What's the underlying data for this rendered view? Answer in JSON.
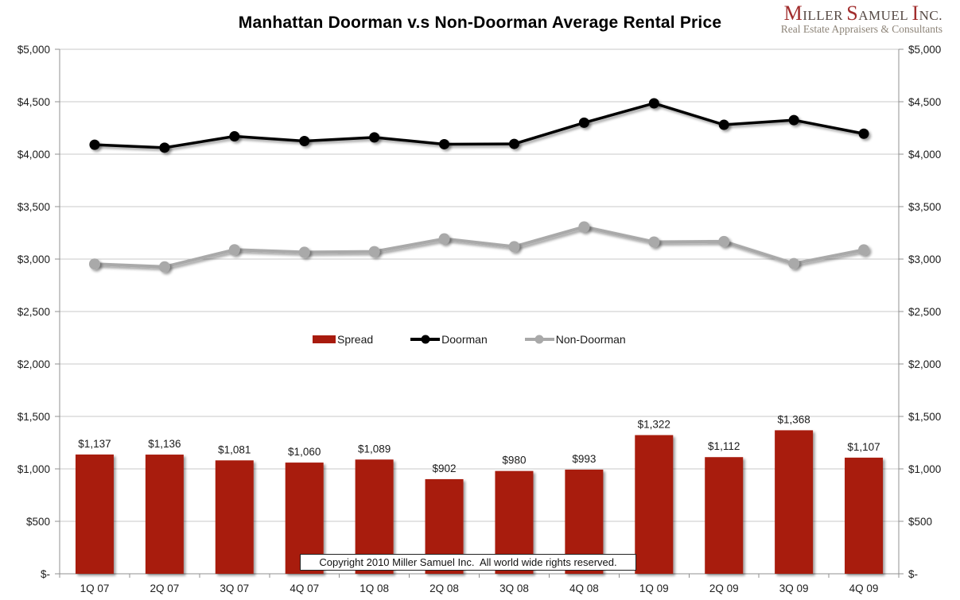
{
  "title": "Manhattan Doorman v.s Non-Doorman Average Rental Price",
  "logo": {
    "name": "Miller Samuel Inc.",
    "subtitle": "Real Estate Appraisers & Consultants"
  },
  "copyright": "Copyright 2010 Miller Samuel Inc.  All world wide rights reserved.",
  "legend": [
    {
      "label": "Spread",
      "type": "bar",
      "color": "#a81b0e"
    },
    {
      "label": "Doorman",
      "type": "line",
      "color": "#000000"
    },
    {
      "label": "Non-Doorman",
      "type": "line",
      "color": "#a9a9a9"
    }
  ],
  "colors": {
    "bar": "#a81b0e",
    "doorman_line": "#000000",
    "non_doorman_line": "#a9a9a9",
    "gridline": "#c9c9c9",
    "axis_line": "#909090",
    "axis_text": "#1c1c1c",
    "logo_red": "#a12d2d",
    "logo_gray": "#8d8478"
  },
  "chart_data": {
    "type": "combo (bar + line)",
    "title": "Manhattan Doorman v.s Non-Doorman Average Rental Price",
    "categories": [
      "1Q 07",
      "2Q 07",
      "3Q 07",
      "4Q 07",
      "1Q 08",
      "2Q 08",
      "3Q 08",
      "4Q 08",
      "1Q 09",
      "2Q 09",
      "3Q 09",
      "4Q 09"
    ],
    "series": [
      {
        "name": "Spread",
        "type": "bar",
        "color": "#a81b0e",
        "values": [
          1137,
          1136,
          1081,
          1060,
          1089,
          902,
          980,
          993,
          1322,
          1112,
          1368,
          1107
        ],
        "data_labels": [
          "$1,137",
          "$1,136",
          "$1,081",
          "$1,060",
          "$1,089",
          "$902",
          "$980",
          "$993",
          "$1,322",
          "$1,112",
          "$1,368",
          "$1,107"
        ]
      },
      {
        "name": "Doorman",
        "type": "line",
        "color": "#000000",
        "values": [
          4090,
          4062,
          4170,
          4125,
          4160,
          4095,
          4098,
          4300,
          4485,
          4280,
          4325,
          4195
        ]
      },
      {
        "name": "Non-Doorman",
        "type": "line",
        "color": "#a9a9a9",
        "values": [
          2953,
          2926,
          3089,
          3065,
          3071,
          3193,
          3118,
          3307,
          3163,
          3168,
          2957,
          3088
        ]
      }
    ],
    "y_axis": {
      "min": 0,
      "max": 5000,
      "step": 500,
      "tick_labels": [
        "$-",
        "$500",
        "$1,000",
        "$1,500",
        "$2,000",
        "$2,500",
        "$3,000",
        "$3,500",
        "$4,000",
        "$4,500",
        "$5,000"
      ],
      "dual_axis": true
    },
    "xlabel": "",
    "ylabel": "",
    "ylim": [
      0,
      5000
    ],
    "grid": true,
    "legend_position": "center-middle"
  }
}
